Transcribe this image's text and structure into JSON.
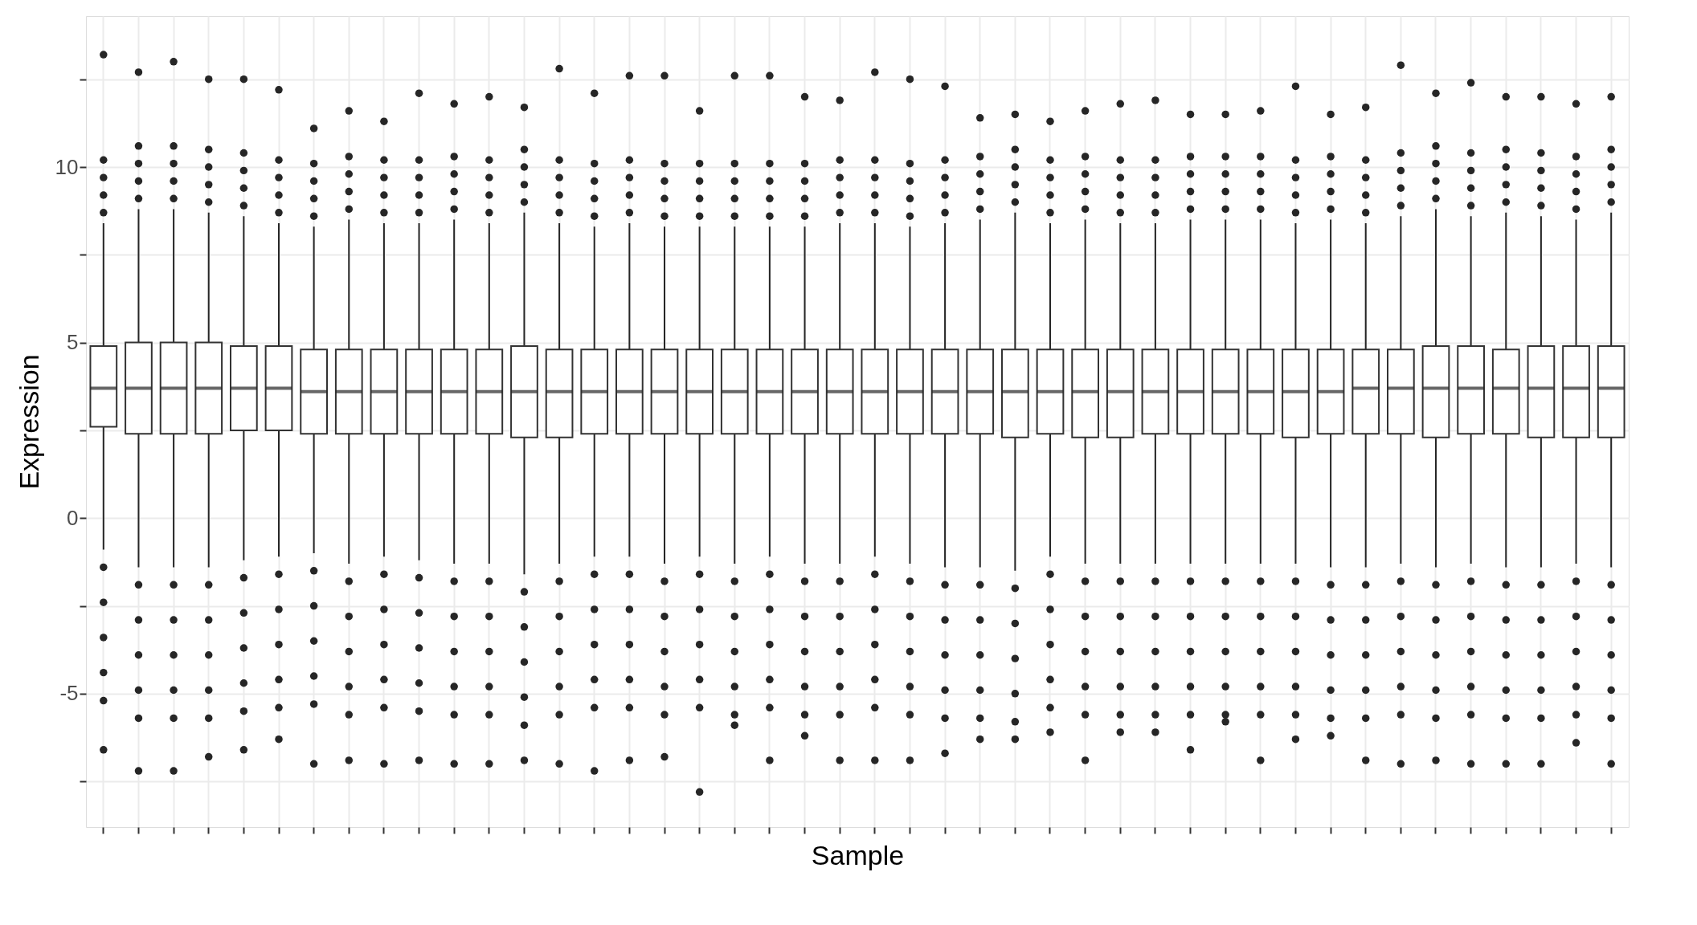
{
  "chart_data": {
    "type": "box",
    "xlabel": "Sample",
    "ylabel": "Expression",
    "categories": [
      null,
      null,
      null,
      null,
      null,
      null,
      null,
      null,
      null,
      null,
      null,
      null,
      null,
      null,
      null,
      null,
      null,
      null,
      null,
      null,
      null,
      null,
      null,
      null,
      null,
      null,
      null,
      null,
      null,
      null,
      null,
      null,
      null,
      null,
      null,
      null,
      null,
      null,
      null,
      null,
      null,
      null,
      null,
      null
    ],
    "ylim": [
      -8.8,
      14.3
    ],
    "yticks": [
      {
        "value": -7.5,
        "label": null
      },
      -5,
      {
        "value": -2.5,
        "label": null
      },
      0,
      {
        "value": 2.5,
        "label": null
      },
      5,
      {
        "value": 7.5,
        "label": null
      },
      10,
      {
        "value": 12.5,
        "label": null
      }
    ],
    "grid": true,
    "tick_labels": "y",
    "legend": false,
    "boxes": [
      {
        "low": -0.9,
        "q1": 2.6,
        "median": 3.7,
        "q3": 4.9,
        "high": 8.4,
        "outliers": [
          8.7,
          9.2,
          9.7,
          10.2,
          13.2,
          -1.4,
          -2.4,
          -3.4,
          -4.4,
          -5.2,
          -6.6
        ]
      },
      {
        "low": -1.4,
        "q1": 2.4,
        "median": 3.7,
        "q3": 5.0,
        "high": 8.8,
        "outliers": [
          9.1,
          9.6,
          10.1,
          10.6,
          12.7,
          -1.9,
          -2.9,
          -3.9,
          -4.9,
          -5.7,
          -7.2
        ]
      },
      {
        "low": -1.4,
        "q1": 2.4,
        "median": 3.7,
        "q3": 5.0,
        "high": 8.8,
        "outliers": [
          9.1,
          9.6,
          10.1,
          10.6,
          13.0,
          -1.9,
          -2.9,
          -3.9,
          -4.9,
          -5.7,
          -7.2
        ]
      },
      {
        "low": -1.4,
        "q1": 2.4,
        "median": 3.7,
        "q3": 5.0,
        "high": 8.7,
        "outliers": [
          9.0,
          9.5,
          10.0,
          10.5,
          12.5,
          -1.9,
          -2.9,
          -3.9,
          -4.9,
          -5.7,
          -6.8
        ]
      },
      {
        "low": -1.2,
        "q1": 2.5,
        "median": 3.7,
        "q3": 4.9,
        "high": 8.6,
        "outliers": [
          8.9,
          9.4,
          9.9,
          10.4,
          12.5,
          -1.7,
          -2.7,
          -3.7,
          -4.7,
          -5.5,
          -6.6
        ]
      },
      {
        "low": -1.1,
        "q1": 2.5,
        "median": 3.7,
        "q3": 4.9,
        "high": 8.4,
        "outliers": [
          8.7,
          9.2,
          9.7,
          10.2,
          12.2,
          -1.6,
          -2.6,
          -3.6,
          -4.6,
          -5.4,
          -6.3
        ]
      },
      {
        "low": -1.0,
        "q1": 2.4,
        "median": 3.6,
        "q3": 4.8,
        "high": 8.3,
        "outliers": [
          8.6,
          9.1,
          9.6,
          10.1,
          11.1,
          -1.5,
          -2.5,
          -3.5,
          -4.5,
          -5.3,
          -7.0
        ]
      },
      {
        "low": -1.3,
        "q1": 2.4,
        "median": 3.6,
        "q3": 4.8,
        "high": 8.5,
        "outliers": [
          8.8,
          9.3,
          9.8,
          10.3,
          11.6,
          -1.8,
          -2.8,
          -3.8,
          -4.8,
          -5.6,
          -6.9
        ]
      },
      {
        "low": -1.1,
        "q1": 2.4,
        "median": 3.6,
        "q3": 4.8,
        "high": 8.4,
        "outliers": [
          8.7,
          9.2,
          9.7,
          10.2,
          11.3,
          -1.6,
          -2.6,
          -3.6,
          -4.6,
          -5.4,
          -7.0
        ]
      },
      {
        "low": -1.2,
        "q1": 2.4,
        "median": 3.6,
        "q3": 4.8,
        "high": 8.4,
        "outliers": [
          8.7,
          9.2,
          9.7,
          10.2,
          12.1,
          -1.7,
          -2.7,
          -3.7,
          -4.7,
          -5.5,
          -6.9
        ]
      },
      {
        "low": -1.3,
        "q1": 2.4,
        "median": 3.6,
        "q3": 4.8,
        "high": 8.5,
        "outliers": [
          8.8,
          9.3,
          9.8,
          10.3,
          11.8,
          -1.8,
          -2.8,
          -3.8,
          -4.8,
          -5.6,
          -7.0
        ]
      },
      {
        "low": -1.3,
        "q1": 2.4,
        "median": 3.6,
        "q3": 4.8,
        "high": 8.4,
        "outliers": [
          8.7,
          9.2,
          9.7,
          10.2,
          12.0,
          -1.8,
          -2.8,
          -3.8,
          -4.8,
          -5.6,
          -7.0
        ]
      },
      {
        "low": -1.6,
        "q1": 2.3,
        "median": 3.6,
        "q3": 4.9,
        "high": 8.7,
        "outliers": [
          9.0,
          9.5,
          10.0,
          10.5,
          11.7,
          -2.1,
          -3.1,
          -4.1,
          -5.1,
          -5.9,
          -6.9
        ]
      },
      {
        "low": -1.3,
        "q1": 2.3,
        "median": 3.6,
        "q3": 4.8,
        "high": 8.4,
        "outliers": [
          8.7,
          9.2,
          9.7,
          10.2,
          12.8,
          -1.8,
          -2.8,
          -3.8,
          -4.8,
          -5.6,
          -7.0
        ]
      },
      {
        "low": -1.1,
        "q1": 2.4,
        "median": 3.6,
        "q3": 4.8,
        "high": 8.3,
        "outliers": [
          8.6,
          9.1,
          9.6,
          10.1,
          12.1,
          -1.6,
          -2.6,
          -3.6,
          -4.6,
          -5.4,
          -7.2
        ]
      },
      {
        "low": -1.1,
        "q1": 2.4,
        "median": 3.6,
        "q3": 4.8,
        "high": 8.4,
        "outliers": [
          8.7,
          9.2,
          9.7,
          10.2,
          12.6,
          -1.6,
          -2.6,
          -3.6,
          -4.6,
          -5.4,
          -6.9
        ]
      },
      {
        "low": -1.3,
        "q1": 2.4,
        "median": 3.6,
        "q3": 4.8,
        "high": 8.3,
        "outliers": [
          8.6,
          9.1,
          9.6,
          10.1,
          12.6,
          -1.8,
          -2.8,
          -3.8,
          -4.8,
          -5.6,
          -6.8
        ]
      },
      {
        "low": -1.1,
        "q1": 2.4,
        "median": 3.6,
        "q3": 4.8,
        "high": 8.3,
        "outliers": [
          8.6,
          9.1,
          9.6,
          10.1,
          11.6,
          -1.6,
          -2.6,
          -3.6,
          -4.6,
          -5.4,
          -7.8
        ]
      },
      {
        "low": -1.3,
        "q1": 2.4,
        "median": 3.6,
        "q3": 4.8,
        "high": 8.3,
        "outliers": [
          8.6,
          9.1,
          9.6,
          10.1,
          12.6,
          -1.8,
          -2.8,
          -3.8,
          -4.8,
          -5.6,
          -5.9
        ]
      },
      {
        "low": -1.1,
        "q1": 2.4,
        "median": 3.6,
        "q3": 4.8,
        "high": 8.3,
        "outliers": [
          8.6,
          9.1,
          9.6,
          10.1,
          12.6,
          -1.6,
          -2.6,
          -3.6,
          -4.6,
          -5.4,
          -6.9
        ]
      },
      {
        "low": -1.3,
        "q1": 2.4,
        "median": 3.6,
        "q3": 4.8,
        "high": 8.3,
        "outliers": [
          8.6,
          9.1,
          9.6,
          10.1,
          12.0,
          -1.8,
          -2.8,
          -3.8,
          -4.8,
          -5.6,
          -6.2
        ]
      },
      {
        "low": -1.3,
        "q1": 2.4,
        "median": 3.6,
        "q3": 4.8,
        "high": 8.4,
        "outliers": [
          8.7,
          9.2,
          9.7,
          10.2,
          11.9,
          -1.8,
          -2.8,
          -3.8,
          -4.8,
          -5.6,
          -6.9
        ]
      },
      {
        "low": -1.1,
        "q1": 2.4,
        "median": 3.6,
        "q3": 4.8,
        "high": 8.4,
        "outliers": [
          8.7,
          9.2,
          9.7,
          10.2,
          12.7,
          -1.6,
          -2.6,
          -3.6,
          -4.6,
          -5.4,
          -6.9
        ]
      },
      {
        "low": -1.3,
        "q1": 2.4,
        "median": 3.6,
        "q3": 4.8,
        "high": 8.3,
        "outliers": [
          8.6,
          9.1,
          9.6,
          10.1,
          12.5,
          -1.8,
          -2.8,
          -3.8,
          -4.8,
          -5.6,
          -6.9
        ]
      },
      {
        "low": -1.4,
        "q1": 2.4,
        "median": 3.6,
        "q3": 4.8,
        "high": 8.4,
        "outliers": [
          8.7,
          9.2,
          9.7,
          10.2,
          12.3,
          -1.9,
          -2.9,
          -3.9,
          -4.9,
          -5.7,
          -6.7
        ]
      },
      {
        "low": -1.4,
        "q1": 2.4,
        "median": 3.6,
        "q3": 4.8,
        "high": 8.5,
        "outliers": [
          8.8,
          9.3,
          9.8,
          10.3,
          11.4,
          -1.9,
          -2.9,
          -3.9,
          -4.9,
          -5.7,
          -6.3
        ]
      },
      {
        "low": -1.5,
        "q1": 2.3,
        "median": 3.6,
        "q3": 4.8,
        "high": 8.7,
        "outliers": [
          9.0,
          9.5,
          10.0,
          10.5,
          11.5,
          -2.0,
          -3.0,
          -4.0,
          -5.0,
          -5.8,
          -6.3
        ]
      },
      {
        "low": -1.1,
        "q1": 2.4,
        "median": 3.6,
        "q3": 4.8,
        "high": 8.4,
        "outliers": [
          8.7,
          9.2,
          9.7,
          10.2,
          11.3,
          -1.6,
          -2.6,
          -3.6,
          -4.6,
          -5.4,
          -6.1
        ]
      },
      {
        "low": -1.3,
        "q1": 2.3,
        "median": 3.6,
        "q3": 4.8,
        "high": 8.5,
        "outliers": [
          8.8,
          9.3,
          9.8,
          10.3,
          11.6,
          -1.8,
          -2.8,
          -3.8,
          -4.8,
          -5.6,
          -6.9
        ]
      },
      {
        "low": -1.3,
        "q1": 2.3,
        "median": 3.6,
        "q3": 4.8,
        "high": 8.4,
        "outliers": [
          8.7,
          9.2,
          9.7,
          10.2,
          11.8,
          -1.8,
          -2.8,
          -3.8,
          -4.8,
          -5.6,
          -6.1
        ]
      },
      {
        "low": -1.3,
        "q1": 2.4,
        "median": 3.6,
        "q3": 4.8,
        "high": 8.4,
        "outliers": [
          8.7,
          9.2,
          9.7,
          10.2,
          11.9,
          -1.8,
          -2.8,
          -3.8,
          -4.8,
          -5.6,
          -6.1
        ]
      },
      {
        "low": -1.3,
        "q1": 2.4,
        "median": 3.6,
        "q3": 4.8,
        "high": 8.5,
        "outliers": [
          8.8,
          9.3,
          9.8,
          10.3,
          11.5,
          -1.8,
          -2.8,
          -3.8,
          -4.8,
          -5.6,
          -6.6
        ]
      },
      {
        "low": -1.3,
        "q1": 2.4,
        "median": 3.6,
        "q3": 4.8,
        "high": 8.5,
        "outliers": [
          8.8,
          9.3,
          9.8,
          10.3,
          11.5,
          -1.8,
          -2.8,
          -3.8,
          -4.8,
          -5.6,
          -5.8
        ]
      },
      {
        "low": -1.3,
        "q1": 2.4,
        "median": 3.6,
        "q3": 4.8,
        "high": 8.5,
        "outliers": [
          8.8,
          9.3,
          9.8,
          10.3,
          11.6,
          -1.8,
          -2.8,
          -3.8,
          -4.8,
          -5.6,
          -6.9
        ]
      },
      {
        "low": -1.3,
        "q1": 2.3,
        "median": 3.6,
        "q3": 4.8,
        "high": 8.4,
        "outliers": [
          8.7,
          9.2,
          9.7,
          10.2,
          12.3,
          -1.8,
          -2.8,
          -3.8,
          -4.8,
          -5.6,
          -6.3
        ]
      },
      {
        "low": -1.4,
        "q1": 2.4,
        "median": 3.6,
        "q3": 4.8,
        "high": 8.5,
        "outliers": [
          8.8,
          9.3,
          9.8,
          10.3,
          11.5,
          -1.9,
          -2.9,
          -3.9,
          -4.9,
          -5.7,
          -6.2
        ]
      },
      {
        "low": -1.4,
        "q1": 2.4,
        "median": 3.7,
        "q3": 4.8,
        "high": 8.4,
        "outliers": [
          8.7,
          9.2,
          9.7,
          10.2,
          11.7,
          -1.9,
          -2.9,
          -3.9,
          -4.9,
          -5.7,
          -6.9
        ]
      },
      {
        "low": -1.3,
        "q1": 2.4,
        "median": 3.7,
        "q3": 4.8,
        "high": 8.6,
        "outliers": [
          8.9,
          9.4,
          9.9,
          10.4,
          12.9,
          -1.8,
          -2.8,
          -3.8,
          -4.8,
          -5.6,
          -7.0
        ]
      },
      {
        "low": -1.4,
        "q1": 2.3,
        "median": 3.7,
        "q3": 4.9,
        "high": 8.8,
        "outliers": [
          9.1,
          9.6,
          10.1,
          10.6,
          12.1,
          -1.9,
          -2.9,
          -3.9,
          -4.9,
          -5.7,
          -6.9
        ]
      },
      {
        "low": -1.3,
        "q1": 2.4,
        "median": 3.7,
        "q3": 4.9,
        "high": 8.6,
        "outliers": [
          8.9,
          9.4,
          9.9,
          10.4,
          12.4,
          -1.8,
          -2.8,
          -3.8,
          -4.8,
          -5.6,
          -7.0
        ]
      },
      {
        "low": -1.4,
        "q1": 2.4,
        "median": 3.7,
        "q3": 4.8,
        "high": 8.7,
        "outliers": [
          9.0,
          9.5,
          10.0,
          10.5,
          12.0,
          -1.9,
          -2.9,
          -3.9,
          -4.9,
          -5.7,
          -7.0
        ]
      },
      {
        "low": -1.4,
        "q1": 2.3,
        "median": 3.7,
        "q3": 4.9,
        "high": 8.6,
        "outliers": [
          8.9,
          9.4,
          9.9,
          10.4,
          12.0,
          -1.9,
          -2.9,
          -3.9,
          -4.9,
          -5.7,
          -7.0
        ]
      },
      {
        "low": -1.3,
        "q1": 2.3,
        "median": 3.7,
        "q3": 4.9,
        "high": 8.5,
        "outliers": [
          8.8,
          9.3,
          9.8,
          10.3,
          11.8,
          -1.8,
          -2.8,
          -3.8,
          -4.8,
          -5.6,
          -6.4
        ]
      },
      {
        "low": -1.4,
        "q1": 2.3,
        "median": 3.7,
        "q3": 4.9,
        "high": 8.7,
        "outliers": [
          9.0,
          9.5,
          10.0,
          10.5,
          12.0,
          -1.9,
          -2.9,
          -3.9,
          -4.9,
          -5.7,
          -7.0
        ]
      }
    ]
  }
}
